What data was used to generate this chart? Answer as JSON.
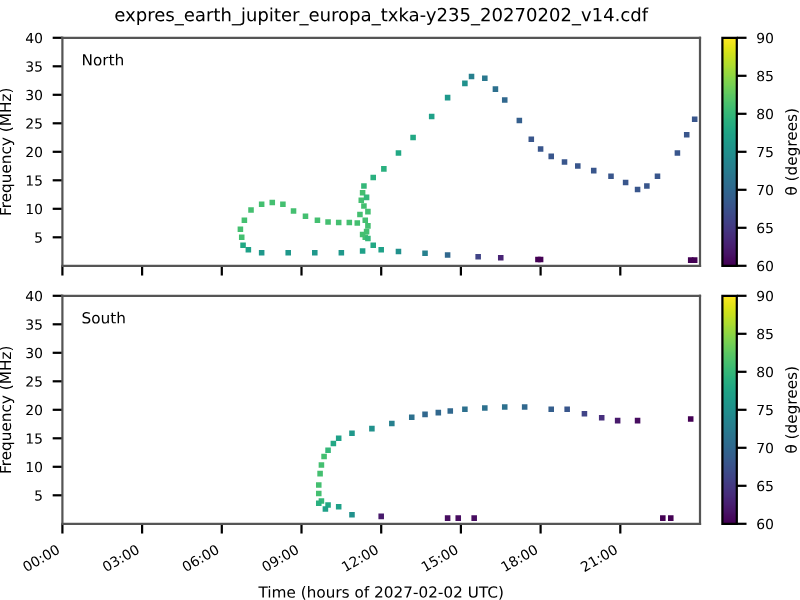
{
  "chart_data": [
    {
      "type": "scatter",
      "title": "expres_earth_jupiter_europa_txka-y235_20270202_v14.cdf",
      "ylabel": "Frequency (MHz)",
      "annotations": [
        "North"
      ],
      "marker": "square",
      "tick_labels": "y",
      "x": [
        6.7,
        6.75,
        6.85,
        7.1,
        7.5,
        7.9,
        8.3,
        8.7,
        9.15,
        9.6,
        10.0,
        10.4,
        10.8,
        11.1,
        11.2,
        11.25,
        11.3,
        11.35,
        11.4,
        11.45,
        11.5,
        11.3,
        11.4,
        11.5,
        11.45,
        11.35,
        11.7,
        12.1,
        12.65,
        13.2,
        13.9,
        14.5,
        15.15,
        15.4,
        15.9,
        16.3,
        16.65,
        17.2,
        17.65,
        18.0,
        18.4,
        18.9,
        19.4,
        20.0,
        20.65,
        21.2,
        21.65,
        22.0,
        22.4,
        23.15,
        23.5,
        23.8,
        6.8,
        7.0,
        7.5,
        8.5,
        9.5,
        10.5,
        11.3,
        11.5,
        11.7,
        12.0,
        12.65,
        13.65,
        14.5,
        15.65,
        16.5,
        17.9,
        18.0,
        23.65,
        23.8
      ],
      "values": [
        6.4,
        5.0,
        8.0,
        9.8,
        10.8,
        11.1,
        10.8,
        9.6,
        8.7,
        8.0,
        7.7,
        7.6,
        7.6,
        7.5,
        9.0,
        11.5,
        12.8,
        10.5,
        8.0,
        6.0,
        9.5,
        5.5,
        5.0,
        7.0,
        12.0,
        14.0,
        15.5,
        17.0,
        19.8,
        22.5,
        26.2,
        29.5,
        32.0,
        33.2,
        32.9,
        31.0,
        29.1,
        25.5,
        22.2,
        20.5,
        19.2,
        18.2,
        17.5,
        16.7,
        15.7,
        14.6,
        13.4,
        14.0,
        15.7,
        19.8,
        23.0,
        25.7,
        3.6,
        2.8,
        2.3,
        2.3,
        2.3,
        2.3,
        2.6,
        4.8,
        3.6,
        2.8,
        2.5,
        2.2,
        1.9,
        1.6,
        1.4,
        1.1,
        1.1,
        1.0,
        1.0
      ],
      "cvalues": [
        81,
        81,
        81,
        81,
        81,
        81,
        81,
        81,
        81,
        81,
        81,
        81,
        81,
        81,
        81,
        81,
        81,
        81,
        81,
        81,
        81,
        81,
        81,
        81,
        80,
        80,
        79,
        79,
        78,
        78,
        77,
        76,
        75,
        73,
        72,
        71,
        70,
        69,
        68,
        68,
        68,
        68,
        68,
        68,
        68,
        68,
        68,
        68,
        68,
        68,
        68,
        68,
        78,
        77,
        76,
        76,
        76,
        76,
        77,
        80,
        78,
        77,
        75,
        73,
        70,
        66,
        63,
        60,
        60,
        60,
        60
      ],
      "xlim": [
        0,
        24
      ],
      "ylim": [
        0,
        40
      ],
      "xticks": [
        {
          "value": 0,
          "label": null
        },
        {
          "value": 3,
          "label": null
        },
        {
          "value": 6,
          "label": null
        },
        {
          "value": 9,
          "label": null
        },
        {
          "value": 12,
          "label": null
        },
        {
          "value": 15,
          "label": null
        },
        {
          "value": 18,
          "label": null
        },
        {
          "value": 21,
          "label": null
        }
      ],
      "yticks": [
        5,
        10,
        15,
        20,
        25,
        30,
        35,
        40
      ],
      "clabel": "θ (degrees)",
      "clim": [
        60,
        90
      ],
      "cticks": [
        60,
        65,
        70,
        75,
        80,
        85,
        90
      ]
    },
    {
      "type": "scatter",
      "xlabel": "Time (hours of 2027-02-02 UTC)",
      "ylabel": "Frequency (MHz)",
      "annotations": [
        "South"
      ],
      "marker": "square",
      "x": [
        10.4,
        10.0,
        9.75,
        9.65,
        9.65,
        9.7,
        9.75,
        9.85,
        10.0,
        10.2,
        10.4,
        10.9,
        11.65,
        12.4,
        13.15,
        13.65,
        14.15,
        14.6,
        15.15,
        15.9,
        16.65,
        17.4,
        18.4,
        19.0,
        19.65,
        20.3,
        20.9,
        21.65,
        23.65,
        9.65,
        9.9,
        10.9,
        12.0,
        14.5,
        14.9,
        15.5,
        22.6,
        22.9
      ],
      "values": [
        3.0,
        3.3,
        4.0,
        5.3,
        6.8,
        8.8,
        10.3,
        11.8,
        12.9,
        14.1,
        15.0,
        15.9,
        16.7,
        17.6,
        18.7,
        19.2,
        19.5,
        19.8,
        20.1,
        20.3,
        20.5,
        20.5,
        20.1,
        20.1,
        19.3,
        18.6,
        18.1,
        18.1,
        18.4,
        3.6,
        2.6,
        1.6,
        1.3,
        1.0,
        1.0,
        1.0,
        1.0,
        1.0
      ],
      "cvalues": [
        77,
        78,
        80,
        81,
        81,
        81,
        81,
        81,
        80,
        78,
        77,
        76,
        75,
        73,
        71,
        70,
        70,
        70,
        71,
        71,
        71,
        70,
        69,
        68,
        66,
        64,
        62,
        61,
        60,
        79,
        77,
        75,
        62,
        61,
        61,
        61,
        60,
        60
      ],
      "xlim": [
        0,
        24
      ],
      "ylim": [
        0,
        40
      ],
      "xticks": [
        {
          "value": 0,
          "label": "00:00"
        },
        {
          "value": 3,
          "label": "03:00"
        },
        {
          "value": 6,
          "label": "06:00"
        },
        {
          "value": 9,
          "label": "09:00"
        },
        {
          "value": 12,
          "label": "12:00"
        },
        {
          "value": 15,
          "label": "15:00"
        },
        {
          "value": 18,
          "label": "18:00"
        },
        {
          "value": 21,
          "label": "21:00"
        }
      ],
      "yticks": [
        5,
        10,
        15,
        20,
        25,
        30,
        35,
        40
      ],
      "clabel": "θ (degrees)",
      "clim": [
        60,
        90
      ],
      "cticks": [
        60,
        65,
        70,
        75,
        80,
        85,
        90
      ]
    }
  ]
}
